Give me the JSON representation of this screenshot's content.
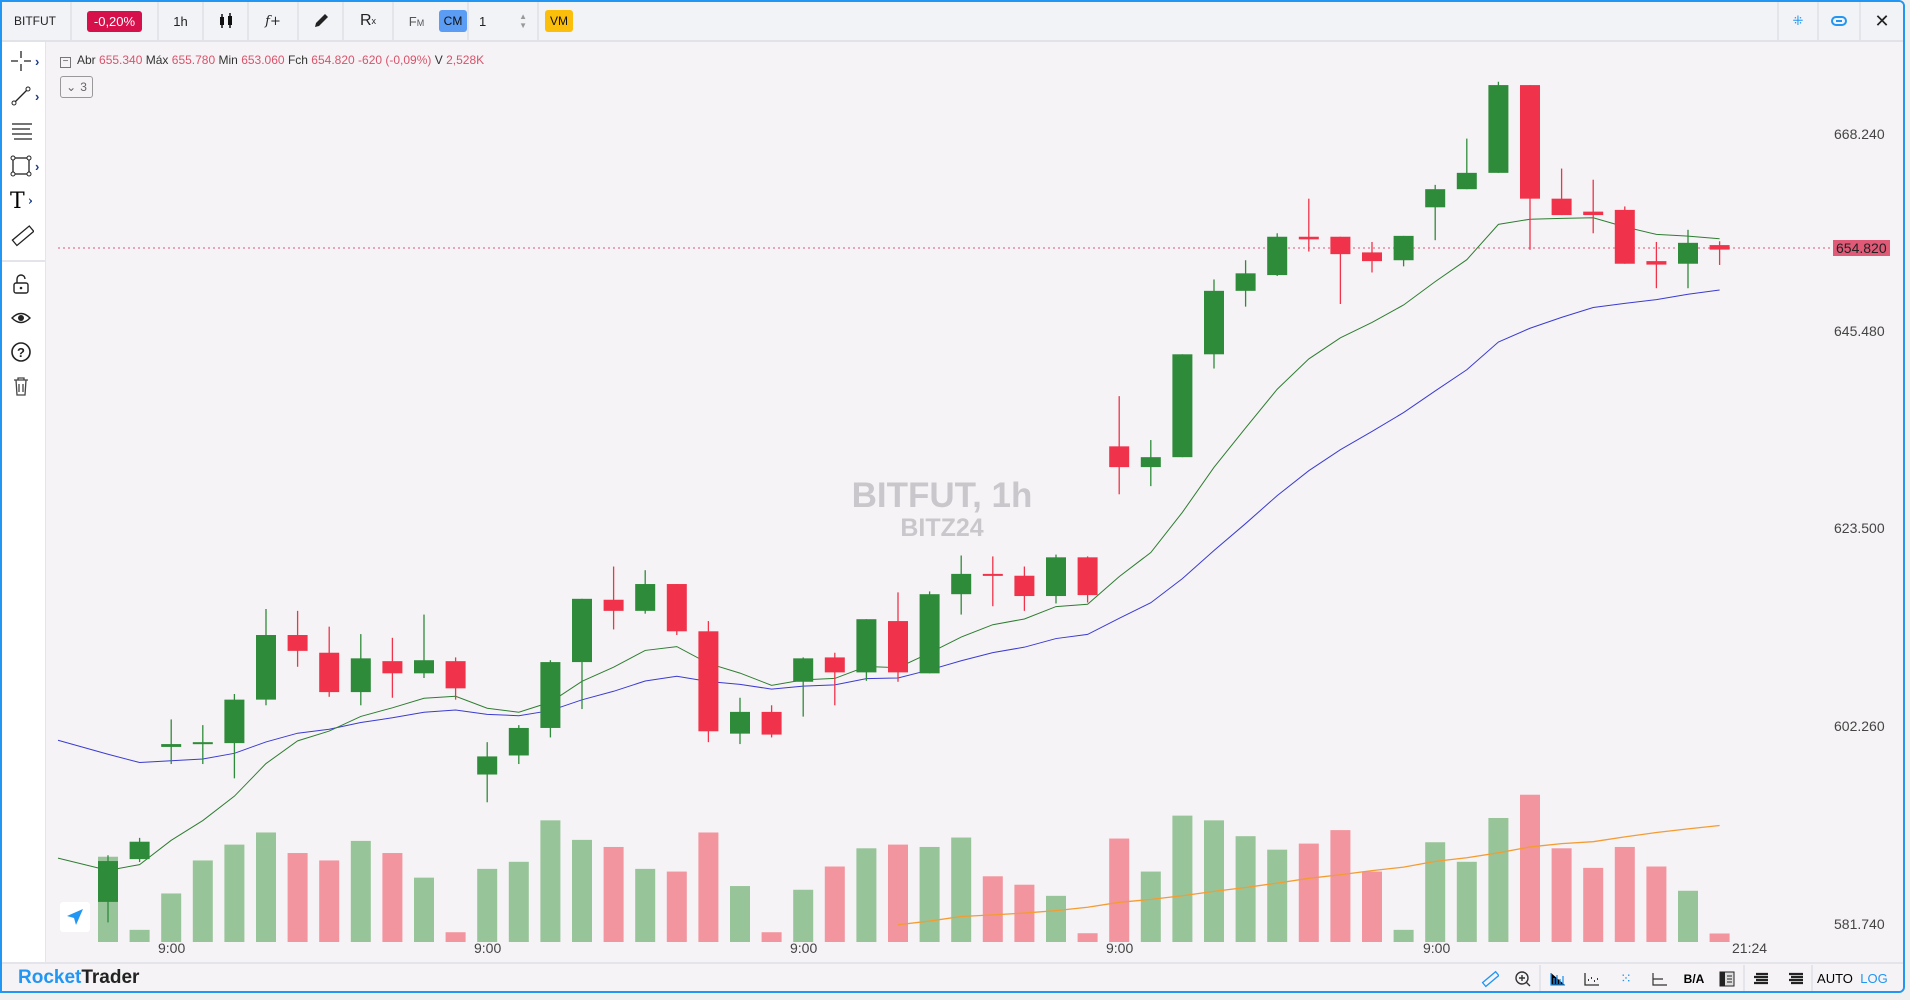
{
  "toolbar": {
    "symbol": "BITFUT",
    "change": "-0,20%",
    "interval": "1h",
    "fx_label": "f+",
    "rx_label": "R",
    "fm_label": "F",
    "fm_sub": "M",
    "cm_label": "CM",
    "qty": "1",
    "vm_label": "VM"
  },
  "legend": {
    "open_label": "Abr",
    "open": "655.340",
    "high_label": "Máx",
    "high": "655.780",
    "low_label": "Min",
    "low": "653.060",
    "close_label": "Fch",
    "close": "654.820",
    "change": "-620 (-0,09%)",
    "vol_label": "V",
    "vol": "2,528K",
    "collapse_count": "3"
  },
  "watermark": {
    "title": "BITFUT, 1h",
    "contract": "BITZ24"
  },
  "price_axis": [
    "668.240",
    "645.480",
    "623.500",
    "602.260",
    "581.740"
  ],
  "last_price": "654.820",
  "time_axis": [
    "9:00",
    "9:00",
    "9:00",
    "9:00",
    "9:00",
    "21:24"
  ],
  "bottom": {
    "brand_a": "Rocket",
    "brand_b": "Trader",
    "ba": "B/A",
    "auto": "AUTO",
    "log": "LOG"
  },
  "colors": {
    "up": "#2e8b3a",
    "down": "#f0334a",
    "vol_up": "#98c49a",
    "vol_down": "#f2959f",
    "ma_fast": "#2e7d32",
    "ma_slow": "#3b3bd1",
    "vol_ma": "#f39c33",
    "accent": "#2196f3"
  },
  "chart_data": {
    "type": "candlestick",
    "ma_fast_period": 9,
    "ma_slow_period": 20,
    "vol_ma_period": 20,
    "candles": [
      [
        584.0,
        588.8,
        581.9,
        588.2,
        25.3
      ],
      [
        588.4,
        590.6,
        588.1,
        590.2,
        3.6
      ],
      [
        600.1,
        603.0,
        598.3,
        600.4,
        14.4
      ],
      [
        600.4,
        602.4,
        598.3,
        600.6,
        24.2
      ],
      [
        600.5,
        605.7,
        596.8,
        605.1,
        28.9
      ],
      [
        605.1,
        614.8,
        604.5,
        612.0,
        32.5
      ],
      [
        612.0,
        614.6,
        608.6,
        610.3,
        26.4
      ],
      [
        610.1,
        612.9,
        605.4,
        605.9,
        24.2
      ],
      [
        605.9,
        612.1,
        604.5,
        609.5,
        30.0
      ],
      [
        609.2,
        611.7,
        605.3,
        607.9,
        26.4
      ],
      [
        607.9,
        614.2,
        607.4,
        609.3,
        19.1
      ],
      [
        609.2,
        609.6,
        605.1,
        606.3,
        2.9
      ],
      [
        597.2,
        600.6,
        594.3,
        599.1,
        21.7
      ],
      [
        599.2,
        602.4,
        598.3,
        602.1,
        23.8
      ],
      [
        602.1,
        609.3,
        601.1,
        609.1,
        36.1
      ],
      [
        609.1,
        615.9,
        604.1,
        615.9,
        30.3
      ],
      [
        615.8,
        619.4,
        612.6,
        614.6,
        28.2
      ],
      [
        614.6,
        619.0,
        614.3,
        617.5,
        21.7
      ],
      [
        617.5,
        617.5,
        612.0,
        612.4,
        20.9
      ],
      [
        612.4,
        613.5,
        600.6,
        601.75,
        32.5
      ],
      [
        601.5,
        605.3,
        600.4,
        603.8,
        16.6
      ],
      [
        603.8,
        604.5,
        601.1,
        601.4,
        2.9
      ],
      [
        607.0,
        609.6,
        603.3,
        609.5,
        15.5
      ],
      [
        609.6,
        610.1,
        604.5,
        608.0,
        22.4
      ],
      [
        608.0,
        613.7,
        607.1,
        613.7,
        27.8
      ],
      [
        613.5,
        616.6,
        607.0,
        608.0,
        28.9
      ],
      [
        607.9,
        616.7,
        607.9,
        616.4,
        28.2
      ],
      [
        616.4,
        620.6,
        614.2,
        618.6,
        31.0
      ],
      [
        618.6,
        620.5,
        615.1,
        618.4,
        19.5
      ],
      [
        618.4,
        619.4,
        614.6,
        616.2,
        17.0
      ],
      [
        616.2,
        620.7,
        615.4,
        620.4,
        13.7
      ],
      [
        620.4,
        620.5,
        615.5,
        616.3,
        2.6
      ],
      [
        632.6,
        638.2,
        627.3,
        630.3,
        30.7
      ],
      [
        630.3,
        633.3,
        628.2,
        631.4,
        20.9
      ],
      [
        631.4,
        642.9,
        631.4,
        642.9,
        37.5
      ],
      [
        642.9,
        651.4,
        641.3,
        650.1,
        36.1
      ],
      [
        650.1,
        653.6,
        648.3,
        652.1,
        31.4
      ],
      [
        651.9,
        656.7,
        651.8,
        656.3,
        27.4
      ],
      [
        656.3,
        660.7,
        654.6,
        656.0,
        29.2
      ],
      [
        656.3,
        656.3,
        648.6,
        654.3,
        33.2
      ],
      [
        654.5,
        655.7,
        652.2,
        653.5,
        20.9
      ],
      [
        653.6,
        656.4,
        652.9,
        656.4,
        3.6
      ],
      [
        659.7,
        662.3,
        655.9,
        661.8,
        29.6
      ],
      [
        661.8,
        667.7,
        661.8,
        663.7,
        23.8
      ],
      [
        663.7,
        674.4,
        663.7,
        674.0,
        36.8
      ],
      [
        674.0,
        674.0,
        654.8,
        660.7,
        43.7
      ],
      [
        660.7,
        664.2,
        658.8,
        658.8,
        27.8
      ],
      [
        659.2,
        662.9,
        656.7,
        658.8,
        22.0
      ],
      [
        659.4,
        659.8,
        653.2,
        653.2,
        28.2
      ],
      [
        653.5,
        655.7,
        650.4,
        653.1,
        22.4
      ],
      [
        653.2,
        657.1,
        650.4,
        655.6,
        15.2
      ],
      [
        655.34,
        655.78,
        653.06,
        654.82,
        2.528
      ]
    ],
    "fields": [
      "open",
      "high",
      "low",
      "close",
      "volume_k"
    ],
    "ylim": [
      581.74,
      668.24
    ],
    "scale": "log"
  }
}
